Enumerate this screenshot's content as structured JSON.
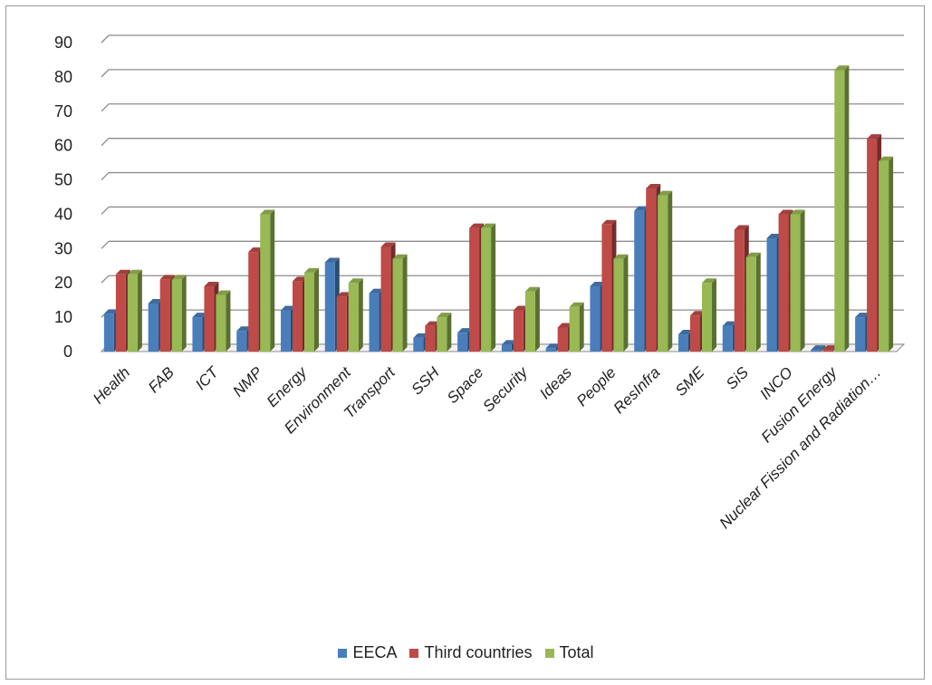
{
  "chart_data": {
    "type": "bar",
    "categories": [
      "Health",
      "FAB",
      "ICT",
      "NMP",
      "Energy",
      "Environment",
      "Transport",
      "SSH",
      "Space",
      "Security",
      "Ideas",
      "People",
      "ResInfra",
      "SME",
      "SiS",
      "INCO",
      "Fusion Energy",
      "Nuclear Fission and Radiation…"
    ],
    "series": [
      {
        "name": "EECA",
        "color": "#4a7ebb",
        "values": [
          11,
          14,
          10,
          6,
          12,
          26,
          17,
          4,
          5.5,
          2,
          1,
          19,
          41,
          5,
          7.5,
          33,
          0.5,
          10
        ]
      },
      {
        "name": "Third countries",
        "color": "#be4b48",
        "values": [
          22.5,
          21,
          19,
          29,
          20.5,
          16,
          30.5,
          7.5,
          36,
          12,
          7,
          37,
          47.5,
          10.5,
          35.5,
          40,
          0.5,
          62
        ]
      },
      {
        "name": "Total",
        "color": "#98b954",
        "values": [
          22.5,
          21,
          16.5,
          40,
          23,
          20,
          27,
          10,
          36,
          17.5,
          13,
          27,
          45.5,
          20,
          27.5,
          40,
          82,
          55.5
        ]
      }
    ],
    "yticks": [
      0,
      10,
      20,
      30,
      40,
      50,
      60,
      70,
      80,
      90
    ],
    "ylim": [
      0,
      90
    ],
    "grid": true,
    "legend_position": "bottom",
    "title": "",
    "xlabel": "",
    "ylabel": ""
  }
}
